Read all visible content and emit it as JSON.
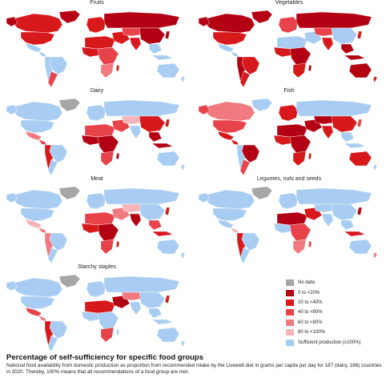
{
  "maps": [
    {
      "title": "Fruits",
      "theme": "fruits"
    },
    {
      "title": "Vegetables",
      "theme": "vegetables"
    },
    {
      "title": "Dairy",
      "theme": "dairy"
    },
    {
      "title": "Fish",
      "theme": "fish"
    },
    {
      "title": "Meat",
      "theme": "meat"
    },
    {
      "title": "Legumes, nuts and seeds",
      "theme": "legumes"
    },
    {
      "title": "Starchy staples",
      "theme": "staples"
    }
  ],
  "legend": {
    "items": [
      {
        "label": "No data",
        "color": "#a6a6a6"
      },
      {
        "label": "0 to <20%",
        "color": "#b30012"
      },
      {
        "label": "20 to <40%",
        "color": "#d7191c"
      },
      {
        "label": "40 to <60%",
        "color": "#e8434b"
      },
      {
        "label": "60 to <80%",
        "color": "#f07a80"
      },
      {
        "label": "80 to <100%",
        "color": "#f6b3b8"
      },
      {
        "label": "Sufficient production (≥100%)",
        "color": "#a9cdf2"
      }
    ]
  },
  "caption": {
    "title": "Percentage of self-sufficiency for specific food groups",
    "body": "National food availability from domestic production as proportion from recommended intake by the Livewell diet in grams per capita per day for 187 (dairy, 186) countries in 2020. Thereby, 100% means that all recommendations of a food group are met."
  }
}
